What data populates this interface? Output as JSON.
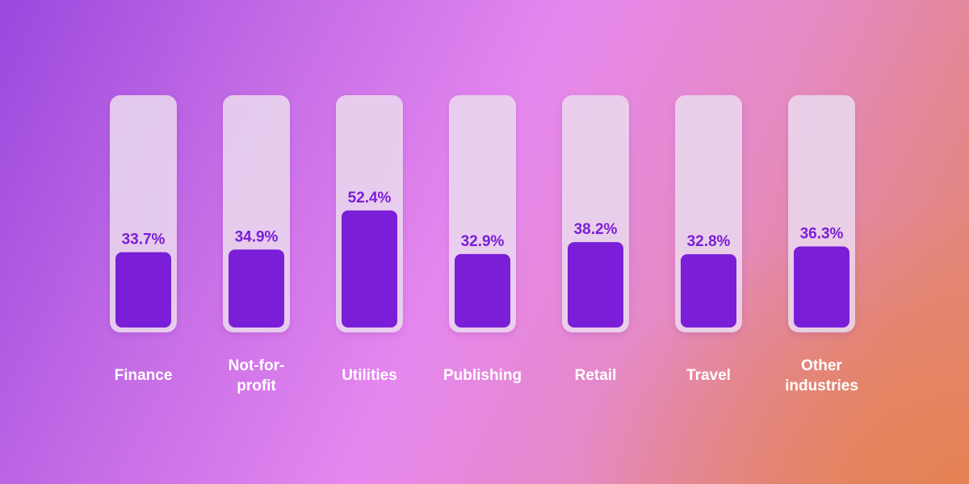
{
  "chart_data": {
    "type": "bar",
    "categories": [
      "Finance",
      "Not-for-\nprofit",
      "Utilities",
      "Publishing",
      "Retail",
      "Travel",
      "Other\nindustries"
    ],
    "values": [
      33.7,
      34.9,
      52.4,
      32.9,
      38.2,
      32.8,
      36.3
    ],
    "value_labels": [
      "33.7%",
      "34.9%",
      "52.4%",
      "32.9%",
      "38.2%",
      "32.8%",
      "36.3%"
    ],
    "ylim": [
      0,
      100
    ],
    "unit": "%",
    "grid": false,
    "colors": {
      "bar": "#7a1ed8",
      "track": "#ecdaf0",
      "label": "#7a1ed8",
      "category": "#ffffff"
    }
  }
}
